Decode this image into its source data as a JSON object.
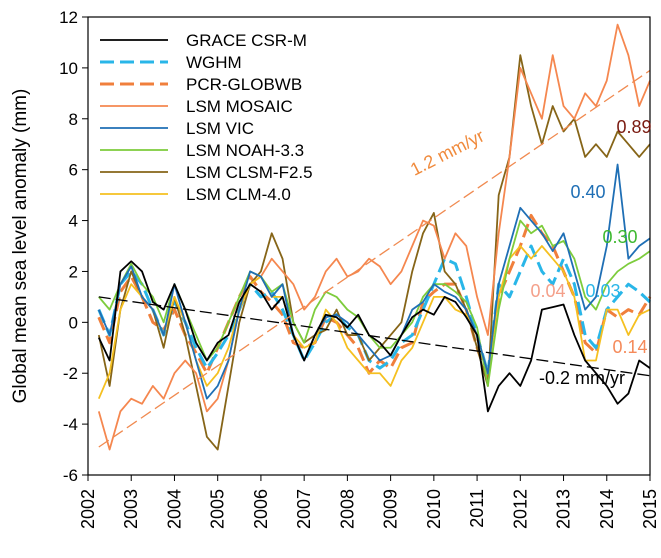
{
  "chart_data": {
    "type": "line",
    "y_label": "Global mean sea level anomaly (mm)",
    "xlim": [
      2002,
      2015
    ],
    "xticks": [
      2002,
      2003,
      2004,
      2005,
      2006,
      2007,
      2008,
      2009,
      2010,
      2011,
      2012,
      2013,
      2014,
      2015
    ],
    "ylim": [
      -6,
      12
    ],
    "yticks": [
      -6,
      -4,
      -2,
      0,
      2,
      4,
      6,
      8,
      10,
      12
    ],
    "x": [
      2002.25,
      2002.5,
      2002.75,
      2003,
      2003.25,
      2003.5,
      2003.75,
      2004,
      2004.25,
      2004.5,
      2004.75,
      2005,
      2005.25,
      2005.5,
      2005.75,
      2006,
      2006.25,
      2006.5,
      2006.75,
      2007,
      2007.25,
      2007.5,
      2007.75,
      2008,
      2008.25,
      2008.5,
      2008.75,
      2009,
      2009.25,
      2009.5,
      2009.75,
      2010,
      2010.25,
      2010.5,
      2010.75,
      2011,
      2011.25,
      2011.5,
      2011.75,
      2012,
      2012.25,
      2012.5,
      2012.75,
      2013,
      2013.25,
      2013.5,
      2013.75,
      2014,
      2014.25,
      2014.5,
      2014.75,
      2015
    ],
    "series": [
      {
        "name": "GRACE CSR-M",
        "color": "#000000",
        "dashed": false,
        "values": [
          -0.6,
          -1.5,
          2.0,
          2.4,
          2.0,
          0.8,
          0.5,
          1.5,
          0.5,
          -0.8,
          -1.5,
          -0.8,
          -0.5,
          0.8,
          1.5,
          1.2,
          0.5,
          1.0,
          -0.5,
          -1.5,
          -0.5,
          0.3,
          0.2,
          -0.2,
          0.3,
          -0.5,
          -0.8,
          -1.3,
          -0.5,
          0.2,
          0.5,
          0.3,
          1.0,
          0.8,
          0.2,
          -0.5,
          -3.5,
          -2.5,
          -2.0,
          -2.5,
          -1.5,
          0.5,
          0.6,
          0.7,
          -0.5,
          -1.5,
          -2.0,
          -2.5,
          -3.2,
          -2.8,
          -1.5,
          -1.8
        ]
      },
      {
        "name": "WGHM",
        "color": "#29b6e8",
        "dashed": true,
        "values": [
          0.5,
          -0.5,
          1.5,
          2.0,
          1.5,
          0.5,
          -0.5,
          0.8,
          0,
          -1.0,
          -1.8,
          -1.2,
          -0.5,
          0.5,
          1.5,
          1.0,
          1.2,
          0.5,
          -0.5,
          -1.5,
          -0.8,
          0,
          0.3,
          -0.2,
          -0.5,
          -1.5,
          -1.8,
          -1.5,
          -0.8,
          -0.5,
          0.5,
          1.5,
          2.5,
          2.3,
          1.0,
          -0.5,
          -2.0,
          1.5,
          1.0,
          2.0,
          3.0,
          2.0,
          1.5,
          2.5,
          1.5,
          -0.5,
          -1.0,
          0.5,
          1.0,
          1.5,
          1.2,
          0.8
        ]
      },
      {
        "name": "PCR-GLOBWB",
        "color": "#f07f3c",
        "dashed": true,
        "values": [
          0.2,
          -0.8,
          1.2,
          1.8,
          1.0,
          0,
          -0.3,
          0.5,
          -0.5,
          -1.2,
          -2.0,
          -1.0,
          0,
          1.0,
          1.8,
          1.2,
          0.8,
          0.3,
          -0.8,
          -1.0,
          -0.8,
          0.2,
          0,
          -0.5,
          -1.0,
          -2.0,
          -1.5,
          -1.8,
          -1.0,
          -0.8,
          0.8,
          1.2,
          1.5,
          1.5,
          0.5,
          -1.0,
          -2.2,
          1.0,
          2.0,
          3.0,
          4.2,
          3.5,
          3.0,
          2.0,
          1.0,
          -0.8,
          -1.2,
          0.5,
          0.2,
          0.5,
          0.3,
          1.0
        ]
      },
      {
        "name": "LSM MOSAIC",
        "color": "#f5874f",
        "dashed": false,
        "values": [
          -3.5,
          -5.0,
          -3.5,
          -3.0,
          -3.2,
          -2.5,
          -3.0,
          -2.0,
          -1.5,
          -2.0,
          -3.5,
          -3.0,
          -1.5,
          0.5,
          1.5,
          1.8,
          2.5,
          2.0,
          1.5,
          0.5,
          1.0,
          2.0,
          2.5,
          1.8,
          2.0,
          2.5,
          2.2,
          1.5,
          2.0,
          3.0,
          4.0,
          3.8,
          2.5,
          3.5,
          3.0,
          1.0,
          -0.5,
          3.5,
          6.5,
          10.0,
          9.0,
          8.0,
          10.5,
          8.5,
          8.0,
          9.0,
          8.5,
          9.5,
          11.7,
          10.5,
          8.5,
          9.5
        ]
      },
      {
        "name": "LSM VIC",
        "color": "#1f6fb5",
        "dashed": false,
        "values": [
          0.5,
          -0.5,
          1.5,
          2.2,
          1.0,
          0.5,
          -0.5,
          1.5,
          0,
          -1.5,
          -3.0,
          -2.5,
          -1.5,
          0.5,
          2.0,
          1.8,
          1.0,
          1.5,
          -0.5,
          -1.5,
          -0.5,
          0.2,
          0.3,
          0,
          -0.5,
          -1.0,
          -1.5,
          -1.3,
          -0.5,
          0.5,
          0.8,
          1.5,
          1.2,
          1.0,
          0.5,
          -0.5,
          -2.0,
          1.5,
          3.0,
          4.5,
          4.0,
          3.5,
          2.8,
          3.5,
          2.0,
          0.5,
          1.0,
          3.0,
          6.2,
          2.5,
          3.0,
          3.3
        ]
      },
      {
        "name": "LSM NOAH-3.3",
        "color": "#7dcc3c",
        "dashed": false,
        "values": [
          1.0,
          0.5,
          1.5,
          2.3,
          1.5,
          1.0,
          0,
          1.5,
          0.5,
          -0.5,
          -1.5,
          -1.0,
          0,
          1.0,
          2.0,
          1.8,
          1.2,
          1.5,
          0,
          -0.8,
          0.5,
          1.2,
          1.0,
          0.5,
          0.2,
          -0.5,
          -1.0,
          -1.0,
          -0.5,
          0,
          1.0,
          1.5,
          1.5,
          1.2,
          0.8,
          -0.2,
          -2.5,
          0.5,
          2.5,
          4.0,
          3.5,
          3.8,
          3.0,
          3.2,
          2.5,
          1.0,
          0.5,
          1.5,
          2.0,
          2.3,
          2.5,
          2.8
        ]
      },
      {
        "name": "LSM CLSM-F2.5",
        "color": "#866518",
        "dashed": false,
        "values": [
          -0.5,
          -2.5,
          0.5,
          2.0,
          1.0,
          0.5,
          -1.0,
          1.0,
          -0.5,
          -2.5,
          -4.5,
          -5.0,
          -2.5,
          0,
          1.5,
          2.0,
          3.5,
          2.5,
          0,
          -0.8,
          -0.5,
          -0.3,
          0.5,
          -0.5,
          -0.5,
          -1.5,
          -1.0,
          -0.5,
          0,
          2.0,
          3.5,
          4.3,
          2.0,
          1.5,
          0.5,
          -1.0,
          -2.5,
          5.0,
          6.5,
          10.5,
          8.5,
          7.0,
          8.5,
          7.5,
          8.0,
          6.5,
          7.0,
          6.5,
          7.5,
          7.0,
          6.5,
          7.0
        ]
      },
      {
        "name": "LSM CLM-4.0",
        "color": "#f5c020",
        "dashed": false,
        "values": [
          -3.0,
          -2.0,
          0.5,
          1.5,
          1.0,
          0.5,
          -0.5,
          1.0,
          0,
          -1.5,
          -2.5,
          -2.0,
          -1.0,
          0.5,
          1.5,
          1.8,
          1.0,
          1.0,
          -0.5,
          -1.0,
          -0.8,
          0.5,
          0,
          -1.0,
          -1.5,
          -2.0,
          -2.0,
          -2.5,
          -1.5,
          -1.0,
          0,
          1.0,
          1.0,
          0.5,
          0.3,
          -0.5,
          -2.0,
          1.0,
          2.5,
          3.0,
          2.5,
          3.0,
          2.5,
          2.0,
          1.0,
          -1.5,
          -1.5,
          0.5,
          0.5,
          -0.5,
          0.3,
          0.5
        ]
      }
    ],
    "trend_lines": [
      {
        "x": [
          2002.25,
          2015
        ],
        "values": [
          1.0,
          -2.1
        ],
        "color": "#000000"
      },
      {
        "x": [
          2002.25,
          2015
        ],
        "values": [
          -4.9,
          9.9
        ],
        "color": "#f08a50"
      }
    ],
    "annotations": [
      {
        "text": "1.2 mm/yr",
        "color": "#f08a3c"
      },
      {
        "text": "-0.2 mm/yr",
        "color": "#000000"
      },
      {
        "text": "0.89",
        "color": "#7a1a10"
      },
      {
        "text": "0.40",
        "color": "#1f6fb5"
      },
      {
        "text": "0.30",
        "color": "#3cb82e"
      },
      {
        "text": "0.04",
        "color": "#f4a08a"
      },
      {
        "text": "0.03",
        "color": "#29b6e8"
      },
      {
        "text": "0.14",
        "color": "#f58a5a"
      }
    ]
  }
}
